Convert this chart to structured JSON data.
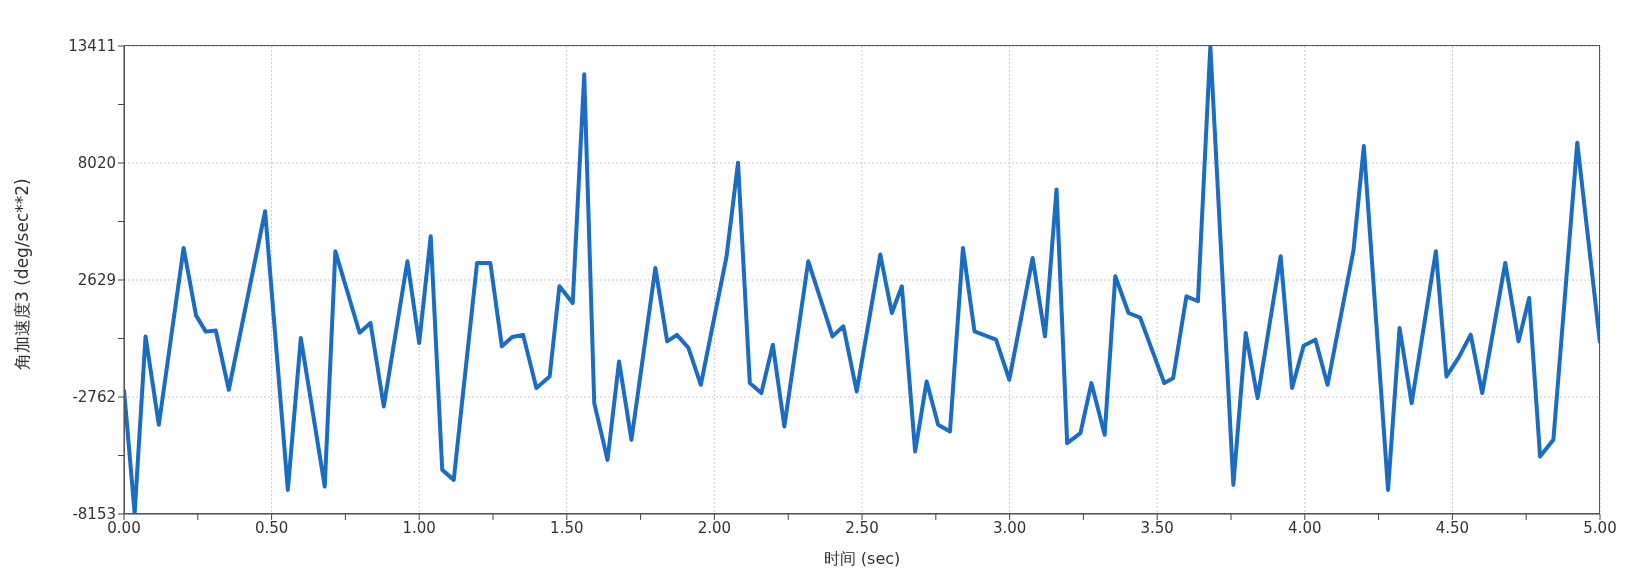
{
  "chart_data": {
    "type": "line",
    "xlabel": "时间 (sec)",
    "ylabel": "角加速度3 (deg/sec**2)",
    "xlim": [
      0,
      5
    ],
    "ylim": [
      -8153,
      13411
    ],
    "xticks": [
      {
        "value": 0,
        "label": "0.00"
      },
      {
        "value": 0.25,
        "label": null
      },
      {
        "value": 0.5,
        "label": "0.50"
      },
      {
        "value": 0.75,
        "label": null
      },
      {
        "value": 1,
        "label": "1.00"
      },
      {
        "value": 1.25,
        "label": null
      },
      {
        "value": 1.5,
        "label": "1.50"
      },
      {
        "value": 1.75,
        "label": null
      },
      {
        "value": 2,
        "label": "2.00"
      },
      {
        "value": 2.25,
        "label": null
      },
      {
        "value": 2.5,
        "label": "2.50"
      },
      {
        "value": 2.75,
        "label": null
      },
      {
        "value": 3,
        "label": "3.00"
      },
      {
        "value": 3.25,
        "label": null
      },
      {
        "value": 3.5,
        "label": "3.50"
      },
      {
        "value": 3.75,
        "label": null
      },
      {
        "value": 4,
        "label": "4.00"
      },
      {
        "value": 4.25,
        "label": null
      },
      {
        "value": 4.5,
        "label": "4.50"
      },
      {
        "value": 4.75,
        "label": null
      },
      {
        "value": 5,
        "label": "5.00"
      }
    ],
    "yticks": [
      -8153,
      {
        "value": -5457.5,
        "label": null
      },
      -2762,
      {
        "value": -66.5,
        "label": null
      },
      2629,
      {
        "value": 5324.5,
        "label": null
      },
      8020,
      {
        "value": 10715.5,
        "label": null
      },
      13411
    ],
    "grid": true,
    "legend": false,
    "marker": "none",
    "line_style": "solid",
    "series": [
      {
        "color": "#1a6cc4",
        "x": [
          0,
          0.036,
          0.073,
          0.118,
          0.202,
          0.244,
          0.277,
          0.311,
          0.355,
          0.478,
          0.555,
          0.599,
          0.68,
          0.716,
          0.798,
          0.835,
          0.88,
          0.96,
          1.0,
          1.039,
          1.078,
          1.117,
          1.196,
          1.241,
          1.28,
          1.315,
          1.352,
          1.397,
          1.442,
          1.475,
          1.52,
          1.559,
          1.593,
          1.638,
          1.677,
          1.719,
          1.8,
          1.84,
          1.873,
          1.912,
          1.954,
          2.041,
          2.08,
          2.12,
          2.159,
          2.198,
          2.237,
          2.318,
          2.4,
          2.437,
          2.482,
          2.562,
          2.601,
          2.635,
          2.68,
          2.719,
          2.758,
          2.798,
          2.842,
          2.881,
          2.954,
          2.999,
          3.078,
          3.12,
          3.159,
          3.195,
          3.24,
          3.277,
          3.322,
          3.358,
          3.403,
          3.442,
          3.524,
          3.554,
          3.599,
          3.638,
          3.68,
          3.758,
          3.8,
          3.84,
          3.918,
          3.957,
          3.996,
          4.036,
          4.077,
          4.165,
          4.2,
          4.282,
          4.321,
          4.362,
          4.444,
          4.48,
          4.523,
          4.562,
          4.601,
          4.679,
          4.724,
          4.76,
          4.797,
          4.842,
          4.923,
          5.0
        ],
        "values": [
          -2430,
          -8120,
          31,
          -4043,
          4108,
          1000,
          250,
          300,
          -2428,
          5800,
          -7042,
          -44,
          -6889,
          3955,
          200,
          650,
          -3197,
          3493,
          -275,
          4647,
          -6120,
          -6581,
          3416,
          3416,
          -429,
          0,
          100,
          -2351,
          -1813,
          2339,
          1570,
          12106,
          -3044,
          -5658,
          -1121,
          -4736,
          3186,
          -199,
          100,
          -500,
          -2198,
          3700,
          8030,
          -2121,
          -2582,
          -352,
          -4120,
          3493,
          32,
          494,
          -2505,
          3800,
          1109,
          2339,
          -5273,
          -2043,
          -4043,
          -4351,
          4108,
          263,
          -121,
          -1967,
          3647,
          32,
          6800,
          -4890,
          -4428,
          -2121,
          -4505,
          2800,
          1109,
          900,
          -2121,
          -1900,
          1878,
          1650,
          13400,
          -6812,
          186,
          -2813,
          3724,
          -2351,
          -400,
          -121,
          -2198,
          4000,
          8799,
          -7042,
          417,
          -3044,
          3955,
          -1813,
          -900,
          109,
          -2582,
          3416,
          -199,
          1801,
          -5504,
          -4736,
          8953,
          -275
        ]
      }
    ]
  }
}
